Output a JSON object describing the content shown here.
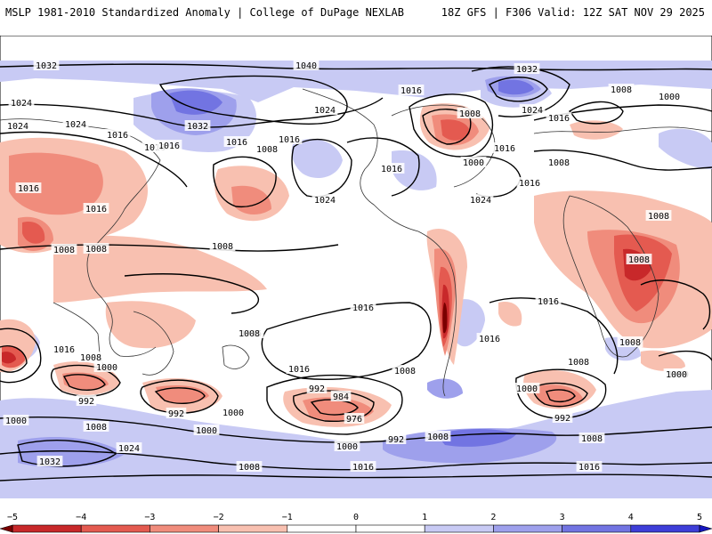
{
  "header": {
    "left": "MSLP 1981-2010 Standardized Anomaly | College of DuPage NEXLAB",
    "right": "18Z GFS | F306 Valid: 12Z SAT NOV 29 2025"
  },
  "colors": {
    "neg5": "#7a0000",
    "neg4": "#c8282a",
    "neg3": "#e45a50",
    "neg2": "#f08c7c",
    "neg1": "#f8c0b0",
    "pos1": "#c8caf4",
    "pos2": "#9ea0ec",
    "pos3": "#7274e2",
    "pos4": "#3e3ed8",
    "pos5": "#1616c0"
  },
  "contour_labels": [
    {
      "text": "1032"
    },
    {
      "text": "1040"
    },
    {
      "text": "1032"
    },
    {
      "text": "1016"
    },
    {
      "text": "1024"
    },
    {
      "text": "1032"
    },
    {
      "text": "1024"
    },
    {
      "text": "1016"
    },
    {
      "text": "1024"
    },
    {
      "text": "1016"
    },
    {
      "text": "1008"
    },
    {
      "text": "1016"
    },
    {
      "text": "1016"
    },
    {
      "text": "1016"
    },
    {
      "text": "1024"
    },
    {
      "text": "1008"
    },
    {
      "text": "1000"
    },
    {
      "text": "1016"
    },
    {
      "text": "1016"
    },
    {
      "text": "1024"
    },
    {
      "text": "1008"
    },
    {
      "text": "1000"
    },
    {
      "text": "1024"
    },
    {
      "text": "1016"
    },
    {
      "text": "1016"
    },
    {
      "text": "1024"
    },
    {
      "text": "1016"
    },
    {
      "text": "1008"
    },
    {
      "text": "1008"
    },
    {
      "text": "1008"
    },
    {
      "text": "1016"
    },
    {
      "text": "1008"
    },
    {
      "text": "1008"
    },
    {
      "text": "1008"
    },
    {
      "text": "1016"
    },
    {
      "text": "1016"
    },
    {
      "text": "1016"
    },
    {
      "text": "1008"
    },
    {
      "text": "1016"
    },
    {
      "text": "1008"
    },
    {
      "text": "1000"
    },
    {
      "text": "992"
    },
    {
      "text": "992"
    },
    {
      "text": "1000"
    },
    {
      "text": "1016"
    },
    {
      "text": "1008"
    },
    {
      "text": "992"
    },
    {
      "text": "984"
    },
    {
      "text": "976"
    },
    {
      "text": "1000"
    },
    {
      "text": "1000"
    },
    {
      "text": "1008"
    },
    {
      "text": "1016"
    },
    {
      "text": "1000"
    },
    {
      "text": "1024"
    },
    {
      "text": "1000"
    },
    {
      "text": "992"
    },
    {
      "text": "1008"
    },
    {
      "text": "1008"
    },
    {
      "text": "1008"
    },
    {
      "text": "1000"
    },
    {
      "text": "992"
    },
    {
      "text": "1000"
    },
    {
      "text": "1032"
    },
    {
      "text": "1008"
    },
    {
      "text": "1016"
    },
    {
      "text": "1016"
    },
    {
      "text": "1008"
    }
  ],
  "colorbar": {
    "ticks": [
      "−5",
      "−4",
      "−3",
      "−2",
      "−1",
      "0",
      "1",
      "2",
      "3",
      "4",
      "5"
    ],
    "values": [
      -5,
      -4,
      -3,
      -2,
      -1,
      0,
      1,
      2,
      3,
      4,
      5
    ]
  }
}
